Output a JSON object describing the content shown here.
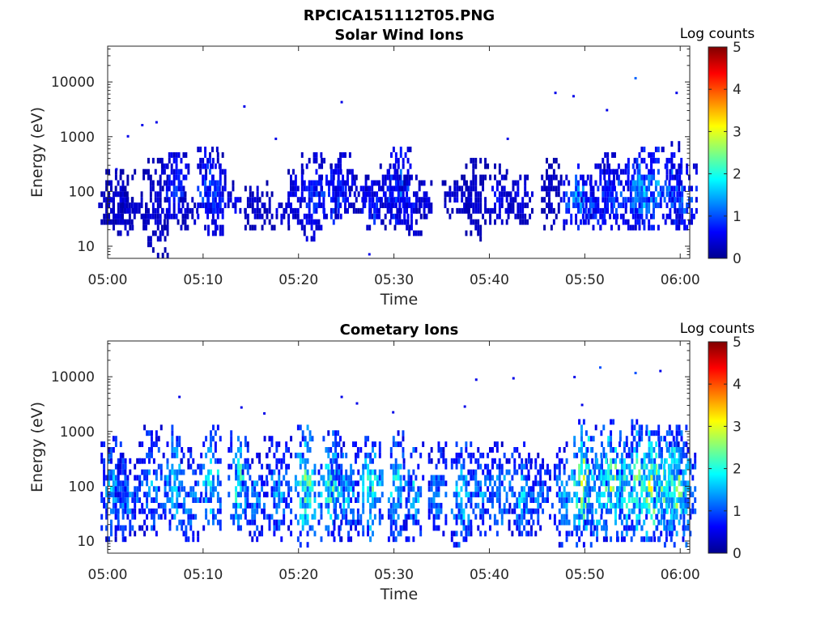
{
  "figure_title": "RPCICA151112T05.PNG",
  "colors": {
    "jet": [
      "#00008f",
      "#0000ff",
      "#0080ff",
      "#00ffff",
      "#80ff80",
      "#ffff00",
      "#ff8000",
      "#ff0000",
      "#800000"
    ]
  },
  "chart_data": [
    {
      "type": "heatmap",
      "title": "Solar Wind Ions",
      "xlabel": "Time",
      "ylabel": "Energy (eV)",
      "x_ticks": [
        "05:00",
        "05:10",
        "05:20",
        "05:30",
        "05:40",
        "05:50",
        "06:00"
      ],
      "x_range_minutes": [
        0,
        61
      ],
      "y_scale": "log",
      "y_range": [
        6,
        45000
      ],
      "y_ticks": [
        {
          "value": 10,
          "label": "10"
        },
        {
          "value": 100,
          "label": "100"
        },
        {
          "value": 1000,
          "label": "1000"
        },
        {
          "value": 10000,
          "label": "10000"
        }
      ],
      "colorbar": {
        "label": "Log counts",
        "min": 0,
        "max": 5,
        "ticks": [
          "0",
          "1",
          "2",
          "3",
          "4",
          "5"
        ]
      },
      "bursts": [
        {
          "t": 0.3,
          "lo": 20,
          "hi": 280,
          "i": 0.5
        },
        {
          "t": 1.7,
          "lo": 15,
          "hi": 230,
          "i": 0.6
        },
        {
          "t": 2.7,
          "lo": 25,
          "hi": 90,
          "i": 0.5
        },
        {
          "t": 5.0,
          "lo": 6,
          "hi": 400,
          "i": 0.5
        },
        {
          "t": 7.0,
          "lo": 20,
          "hi": 550,
          "i": 1.0
        },
        {
          "t": 8.3,
          "lo": 20,
          "hi": 90,
          "i": 0.5
        },
        {
          "t": 10.5,
          "lo": 20,
          "hi": 700,
          "i": 1.2
        },
        {
          "t": 11.2,
          "lo": 15,
          "hi": 500,
          "i": 1.0
        },
        {
          "t": 13.5,
          "lo": 40,
          "hi": 150,
          "i": 0.8
        },
        {
          "t": 15.5,
          "lo": 20,
          "hi": 160,
          "i": 0.5
        },
        {
          "t": 17.8,
          "lo": 20,
          "hi": 100,
          "i": 0.6
        },
        {
          "t": 19.5,
          "lo": 25,
          "hi": 280,
          "i": 0.7
        },
        {
          "t": 21.5,
          "lo": 12,
          "hi": 550,
          "i": 1.0
        },
        {
          "t": 23.5,
          "lo": 25,
          "hi": 400,
          "i": 1.2
        },
        {
          "t": 24.5,
          "lo": 30,
          "hi": 550,
          "i": 0.8
        },
        {
          "t": 26.5,
          "lo": 40,
          "hi": 200,
          "i": 0.6
        },
        {
          "t": 27.8,
          "lo": 20,
          "hi": 180,
          "i": 1.0
        },
        {
          "t": 29.5,
          "lo": 20,
          "hi": 350,
          "i": 0.7
        },
        {
          "t": 30.5,
          "lo": 20,
          "hi": 650,
          "i": 1.3
        },
        {
          "t": 31.7,
          "lo": 15,
          "hi": 220,
          "i": 0.8
        },
        {
          "t": 33.0,
          "lo": 30,
          "hi": 180,
          "i": 0.6
        },
        {
          "t": 36.5,
          "lo": 30,
          "hi": 200,
          "i": 0.5
        },
        {
          "t": 38.5,
          "lo": 12,
          "hi": 450,
          "i": 0.5
        },
        {
          "t": 40.8,
          "lo": 25,
          "hi": 300,
          "i": 0.7
        },
        {
          "t": 43.0,
          "lo": 25,
          "hi": 200,
          "i": 0.6
        },
        {
          "t": 46.5,
          "lo": 20,
          "hi": 450,
          "i": 0.5
        },
        {
          "t": 49.2,
          "lo": 20,
          "hi": 300,
          "i": 1.5
        },
        {
          "t": 50.8,
          "lo": 20,
          "hi": 180,
          "i": 1.2
        },
        {
          "t": 52.0,
          "lo": 20,
          "hi": 550,
          "i": 1.0
        },
        {
          "t": 53.2,
          "lo": 20,
          "hi": 350,
          "i": 1.3
        },
        {
          "t": 55.0,
          "lo": 20,
          "hi": 400,
          "i": 1.5
        },
        {
          "t": 56.0,
          "lo": 20,
          "hi": 600,
          "i": 1.8
        },
        {
          "t": 57.5,
          "lo": 20,
          "hi": 700,
          "i": 1.5
        },
        {
          "t": 59.0,
          "lo": 18,
          "hi": 800,
          "i": 1.3
        },
        {
          "t": 60.3,
          "lo": 20,
          "hi": 350,
          "i": 1.2
        }
      ],
      "isolated": [
        {
          "t": 3.5,
          "e": 1600,
          "v": 0.5
        },
        {
          "t": 5.0,
          "e": 1800,
          "v": 0.5
        },
        {
          "t": 14.2,
          "e": 3500,
          "v": 0.5
        },
        {
          "t": 24.4,
          "e": 4200,
          "v": 0.5
        },
        {
          "t": 46.8,
          "e": 6200,
          "v": 0.5
        },
        {
          "t": 48.7,
          "e": 5400,
          "v": 0.5
        },
        {
          "t": 52.2,
          "e": 3000,
          "v": 0.5
        },
        {
          "t": 55.2,
          "e": 11500,
          "v": 1.1
        },
        {
          "t": 59.5,
          "e": 6200,
          "v": 0.5
        },
        {
          "t": 2.0,
          "e": 1000,
          "v": 0.5
        },
        {
          "t": 17.5,
          "e": 900,
          "v": 0.5
        },
        {
          "t": 41.8,
          "e": 900,
          "v": 0.5
        },
        {
          "t": 0.8,
          "e": 250,
          "v": 0.5
        },
        {
          "t": 27.3,
          "e": 7,
          "v": 0.5
        }
      ]
    },
    {
      "type": "heatmap",
      "title": "Cometary Ions",
      "xlabel": "Time",
      "ylabel": "Energy (eV)",
      "x_ticks": [
        "05:00",
        "05:10",
        "05:20",
        "05:30",
        "05:40",
        "05:50",
        "06:00"
      ],
      "x_range_minutes": [
        0,
        61
      ],
      "y_scale": "log",
      "y_range": [
        6,
        45000
      ],
      "y_ticks": [
        {
          "value": 10,
          "label": "10"
        },
        {
          "value": 100,
          "label": "100"
        },
        {
          "value": 1000,
          "label": "1000"
        },
        {
          "value": 10000,
          "label": "10000"
        }
      ],
      "colorbar": {
        "label": "Log counts",
        "min": 0,
        "max": 5,
        "ticks": [
          "0",
          "1",
          "2",
          "3",
          "4",
          "5"
        ]
      },
      "bursts": [
        {
          "t": 0.6,
          "lo": 10,
          "hi": 900,
          "i": 1.8
        },
        {
          "t": 2.0,
          "lo": 10,
          "hi": 400,
          "i": 1.5
        },
        {
          "t": 4.5,
          "lo": 12,
          "hi": 1400,
          "i": 1.7
        },
        {
          "t": 7.0,
          "lo": 15,
          "hi": 1300,
          "i": 2.2
        },
        {
          "t": 8.5,
          "lo": 10,
          "hi": 500,
          "i": 1.6
        },
        {
          "t": 10.8,
          "lo": 15,
          "hi": 1200,
          "i": 2.2
        },
        {
          "t": 13.6,
          "lo": 15,
          "hi": 1100,
          "i": 2.3
        },
        {
          "t": 15.3,
          "lo": 10,
          "hi": 450,
          "i": 1.5
        },
        {
          "t": 17.8,
          "lo": 10,
          "hi": 800,
          "i": 1.7
        },
        {
          "t": 20.7,
          "lo": 8,
          "hi": 1200,
          "i": 2.6
        },
        {
          "t": 23.3,
          "lo": 10,
          "hi": 1000,
          "i": 2.4
        },
        {
          "t": 24.8,
          "lo": 10,
          "hi": 700,
          "i": 1.8
        },
        {
          "t": 27.5,
          "lo": 10,
          "hi": 900,
          "i": 2.2
        },
        {
          "t": 30.3,
          "lo": 10,
          "hi": 1000,
          "i": 2.3
        },
        {
          "t": 32.0,
          "lo": 10,
          "hi": 700,
          "i": 1.8
        },
        {
          "t": 34.5,
          "lo": 12,
          "hi": 600,
          "i": 1.6
        },
        {
          "t": 37.0,
          "lo": 7,
          "hi": 700,
          "i": 2.0
        },
        {
          "t": 39.0,
          "lo": 12,
          "hi": 500,
          "i": 1.6
        },
        {
          "t": 41.0,
          "lo": 12,
          "hi": 600,
          "i": 1.8
        },
        {
          "t": 43.2,
          "lo": 12,
          "hi": 600,
          "i": 1.9
        },
        {
          "t": 45.0,
          "lo": 12,
          "hi": 400,
          "i": 1.5
        },
        {
          "t": 47.5,
          "lo": 8,
          "hi": 700,
          "i": 1.8
        },
        {
          "t": 49.8,
          "lo": 8,
          "hi": 1500,
          "i": 2.9
        },
        {
          "t": 51.2,
          "lo": 10,
          "hi": 700,
          "i": 2.1
        },
        {
          "t": 52.7,
          "lo": 10,
          "hi": 1600,
          "i": 2.7
        },
        {
          "t": 54.2,
          "lo": 10,
          "hi": 800,
          "i": 2.2
        },
        {
          "t": 55.5,
          "lo": 10,
          "hi": 1500,
          "i": 2.7
        },
        {
          "t": 56.8,
          "lo": 10,
          "hi": 1200,
          "i": 3.0
        },
        {
          "t": 58.2,
          "lo": 10,
          "hi": 900,
          "i": 2.6
        },
        {
          "t": 59.5,
          "lo": 8,
          "hi": 1300,
          "i": 2.7
        },
        {
          "t": 60.6,
          "lo": 10,
          "hi": 600,
          "i": 2.1
        }
      ],
      "isolated": [
        {
          "t": 7.4,
          "e": 4200,
          "v": 0.5
        },
        {
          "t": 13.9,
          "e": 2700,
          "v": 0.5
        },
        {
          "t": 16.3,
          "e": 2100,
          "v": 0.5
        },
        {
          "t": 24.4,
          "e": 4200,
          "v": 0.5
        },
        {
          "t": 26.0,
          "e": 3200,
          "v": 0.5
        },
        {
          "t": 38.5,
          "e": 8700,
          "v": 0.5
        },
        {
          "t": 42.4,
          "e": 9200,
          "v": 0.5
        },
        {
          "t": 48.8,
          "e": 9700,
          "v": 0.5
        },
        {
          "t": 51.5,
          "e": 14500,
          "v": 1.0
        },
        {
          "t": 55.2,
          "e": 11500,
          "v": 1.0
        },
        {
          "t": 57.8,
          "e": 12500,
          "v": 0.5
        },
        {
          "t": 49.6,
          "e": 3000,
          "v": 0.5
        },
        {
          "t": 29.8,
          "e": 2200,
          "v": 0.5
        },
        {
          "t": 37.3,
          "e": 2800,
          "v": 0.5
        }
      ]
    }
  ]
}
